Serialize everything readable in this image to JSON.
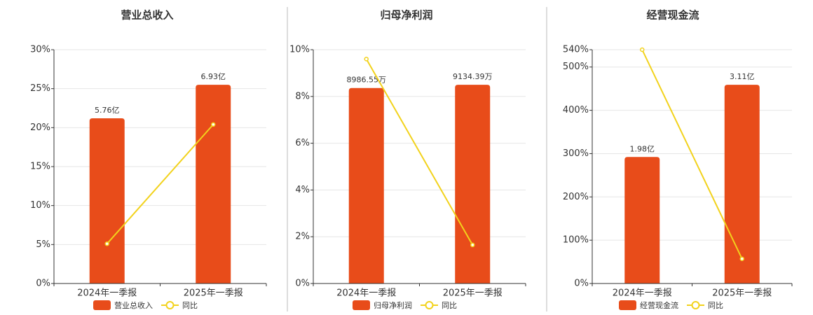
{
  "chart_data": [
    {
      "type": "bar",
      "title": "营业总收入",
      "categories": [
        "2024年一季报",
        "2025年一季报"
      ],
      "series": [
        {
          "name": "营业总收入",
          "type": "bar",
          "color": "#e84c1a",
          "values": [
            5.76,
            6.93
          ],
          "value_labels": [
            "5.76亿",
            "6.93亿"
          ]
        },
        {
          "name": "同比",
          "type": "line",
          "color": "#f2d21c",
          "values": [
            5.1,
            20.4
          ]
        }
      ],
      "ylim": [
        0,
        30
      ],
      "yticks": [
        {
          "value": 0,
          "label": "0%"
        },
        {
          "value": 5,
          "label": "5%"
        },
        {
          "value": 10,
          "label": "10%"
        },
        {
          "value": 15,
          "label": "15%"
        },
        {
          "value": 20,
          "label": "20%"
        },
        {
          "value": 25,
          "label": "25%"
        },
        {
          "value": 30,
          "label": "30%"
        }
      ],
      "grid": true
    },
    {
      "type": "bar",
      "title": "归母净利润",
      "categories": [
        "2024年一季报",
        "2025年一季报"
      ],
      "series": [
        {
          "name": "归母净利润",
          "type": "bar",
          "color": "#e84c1a",
          "values": [
            8986.55,
            9134.39
          ],
          "value_labels": [
            "8986.55万",
            "9134.39万"
          ]
        },
        {
          "name": "同比",
          "type": "line",
          "color": "#f2d21c",
          "values": [
            9.6,
            1.65
          ]
        }
      ],
      "ylim": [
        0,
        10
      ],
      "yticks": [
        {
          "value": 0,
          "label": "0%"
        },
        {
          "value": 2,
          "label": "2%"
        },
        {
          "value": 4,
          "label": "4%"
        },
        {
          "value": 6,
          "label": "6%"
        },
        {
          "value": 8,
          "label": "8%"
        },
        {
          "value": 10,
          "label": "10%"
        }
      ],
      "grid": true
    },
    {
      "type": "bar",
      "title": "经营现金流",
      "categories": [
        "2024年一季报",
        "2025年一季报"
      ],
      "series": [
        {
          "name": "经营现金流",
          "type": "bar",
          "color": "#e84c1a",
          "values": [
            1.98,
            3.11
          ],
          "value_labels": [
            "1.98亿",
            "3.11亿"
          ]
        },
        {
          "name": "同比",
          "type": "line",
          "color": "#f2d21c",
          "values": [
            540,
            57
          ]
        }
      ],
      "ylim": [
        0,
        540
      ],
      "yticks": [
        {
          "value": 0,
          "label": "0%"
        },
        {
          "value": 100,
          "label": "100%"
        },
        {
          "value": 200,
          "label": "200%"
        },
        {
          "value": 300,
          "label": "300%"
        },
        {
          "value": 400,
          "label": "400%"
        },
        {
          "value": 500,
          "label": "500%"
        },
        {
          "value": 540,
          "label": "540%"
        }
      ],
      "grid": true
    }
  ]
}
